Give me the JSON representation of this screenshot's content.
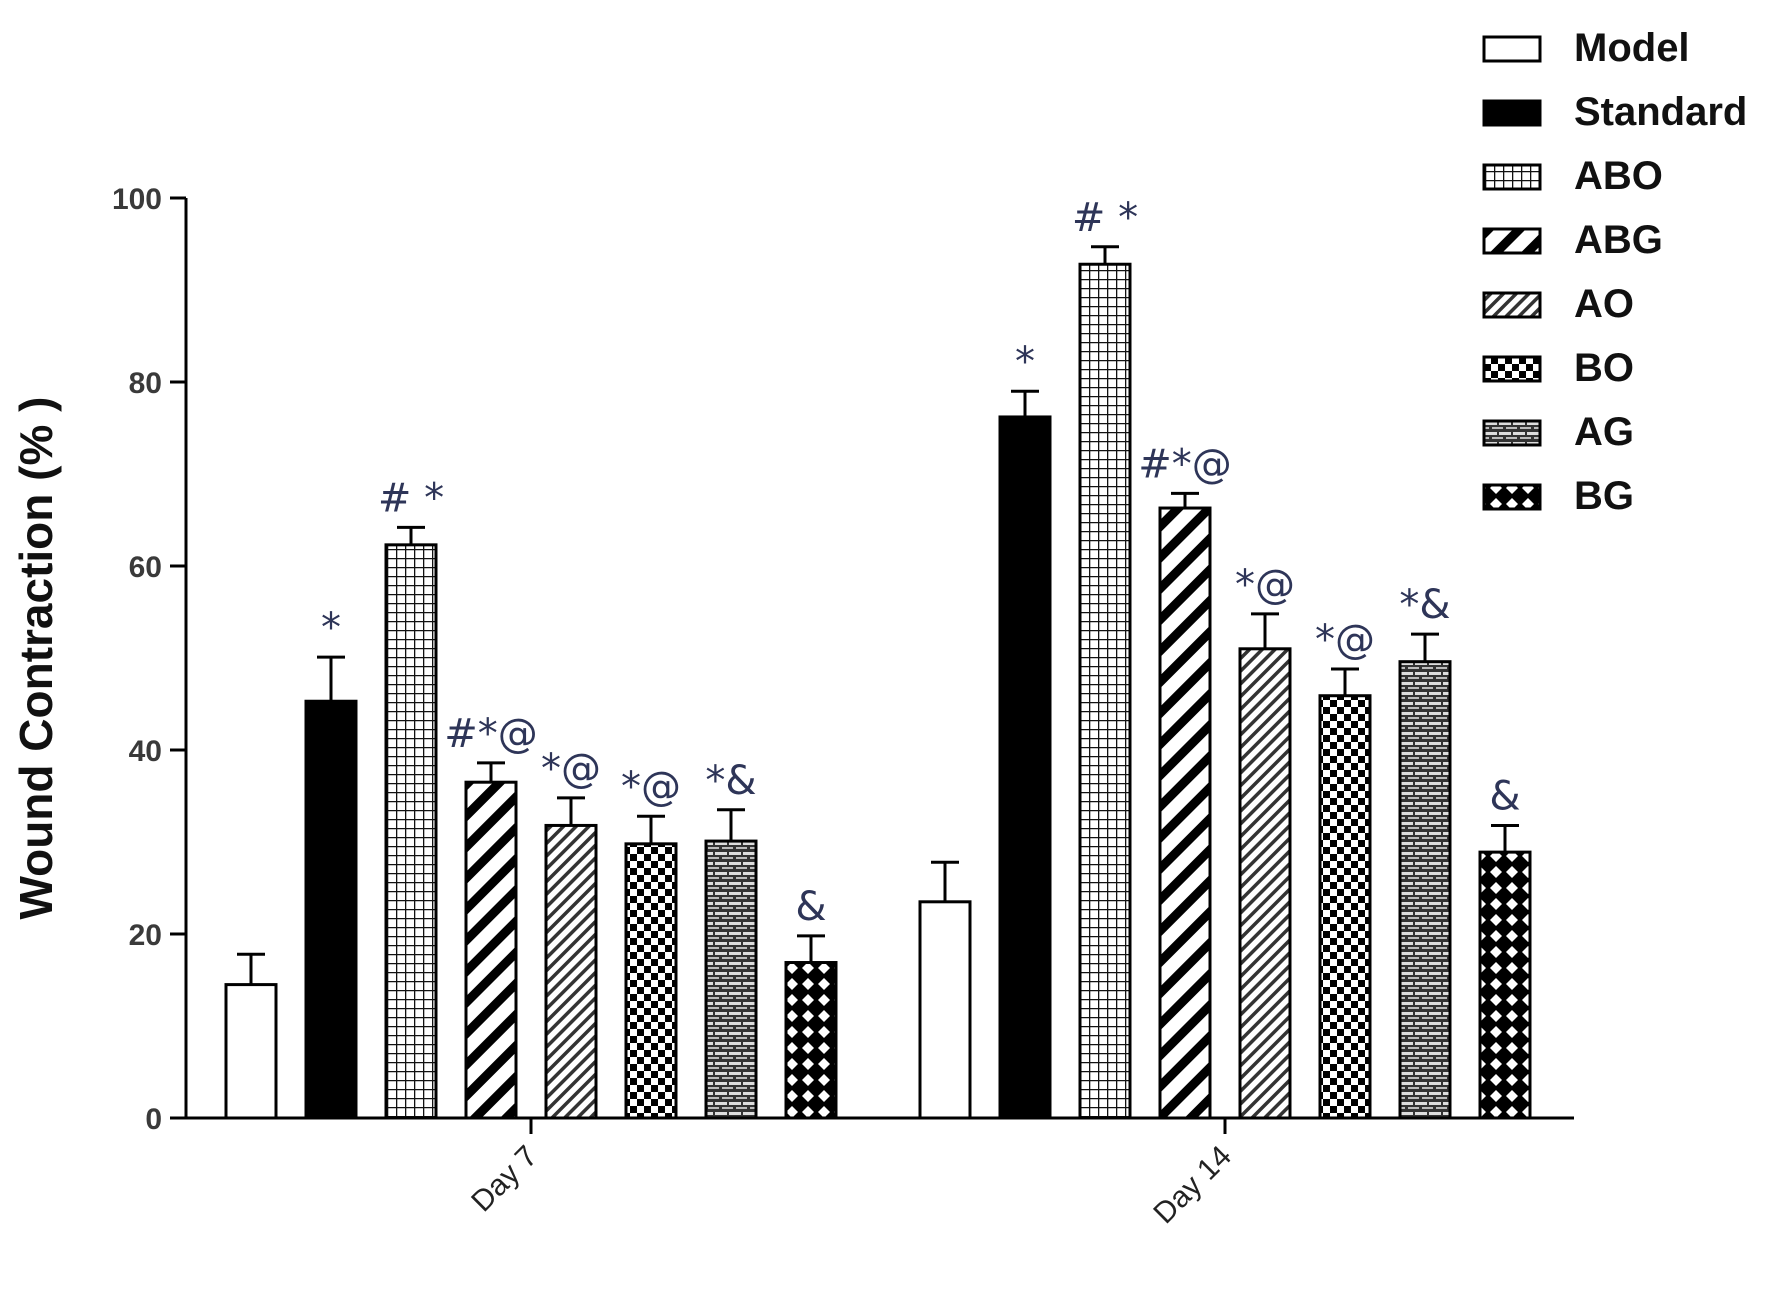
{
  "chart_data": {
    "type": "bar",
    "title": "",
    "xlabel": "",
    "ylabel": "Wound Contraction (% )",
    "ylim": [
      0,
      100
    ],
    "yticks": [
      0,
      20,
      40,
      60,
      80,
      100
    ],
    "categories": [
      "Day 7",
      "Day 14"
    ],
    "legend_position": "top-right",
    "series": [
      {
        "name": "Model",
        "pattern": "white",
        "values": [
          14.5,
          23.5
        ],
        "errors": [
          3.3,
          4.3
        ],
        "annotations": [
          "",
          ""
        ]
      },
      {
        "name": "Standard",
        "pattern": "black",
        "values": [
          45.3,
          76.2
        ],
        "errors": [
          4.8,
          2.8
        ],
        "annotations": [
          "*",
          "*"
        ]
      },
      {
        "name": "ABO",
        "pattern": "grid",
        "values": [
          62.3,
          92.8
        ],
        "errors": [
          1.9,
          1.9
        ],
        "annotations": [
          "# *",
          "# *"
        ]
      },
      {
        "name": "ABG",
        "pattern": "diag-bold",
        "values": [
          36.5,
          66.3
        ],
        "errors": [
          2.1,
          1.6
        ],
        "annotations": [
          "#*@",
          "#*@"
        ]
      },
      {
        "name": "AO",
        "pattern": "diag-fine",
        "values": [
          31.8,
          51.0
        ],
        "errors": [
          3.0,
          3.8
        ],
        "annotations": [
          "*@",
          "*@"
        ]
      },
      {
        "name": "BO",
        "pattern": "checker",
        "values": [
          29.8,
          45.9
        ],
        "errors": [
          3.0,
          2.9
        ],
        "annotations": [
          "*@",
          "*@"
        ]
      },
      {
        "name": "AG",
        "pattern": "brick",
        "values": [
          30.1,
          49.6
        ],
        "errors": [
          3.4,
          3.0
        ],
        "annotations": [
          "*&",
          "*&"
        ]
      },
      {
        "name": "BG",
        "pattern": "diamond",
        "values": [
          16.9,
          28.9
        ],
        "errors": [
          2.9,
          2.9
        ],
        "annotations": [
          "&",
          "&"
        ]
      }
    ]
  }
}
